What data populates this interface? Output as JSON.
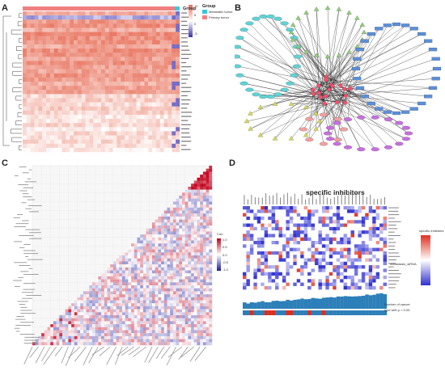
{
  "figure": {
    "panels": {
      "A": {
        "letter": "A",
        "legend_title": "Group",
        "legend_items": [
          {
            "label": "Metastatic tumor",
            "color": "#37c9d9"
          },
          {
            "label": "Primary tumor",
            "color": "#f08080"
          }
        ],
        "colorbar_ticks": [
          "10",
          "5",
          "0",
          "-5"
        ],
        "bar_label": "Group"
      },
      "B": {
        "letter": "B"
      },
      "C": {
        "letter": "C",
        "colorbar_title": "Corr",
        "colorbar_ticks": [
          "1.0",
          "0.5",
          "0.0",
          "-0.5",
          "-1.0"
        ]
      },
      "D": {
        "letter": "D",
        "title": "specific inhibitors",
        "legend_title": "specific inhibitors",
        "side_label": "metastasis_siRNA",
        "bottom_labels": [
          "Number of cancer",
          "type with p < 0.05"
        ]
      }
    }
  },
  "colors": {
    "heat_high": "#e8705a",
    "heat_mid": "#ffffff",
    "heat_low": "#3b2fb0",
    "metastatic": "#37c9d9",
    "primary": "#f08080",
    "node_blue": "#5b8fd9",
    "node_cyan": "#5fd3d6",
    "node_green": "#8fd07a",
    "node_yellow": "#d9d95a",
    "node_purple": "#c86fe0",
    "node_pink": "#f2a0a0",
    "bar_blue": "#2c7fb8",
    "bar_red": "#d7301f"
  }
}
